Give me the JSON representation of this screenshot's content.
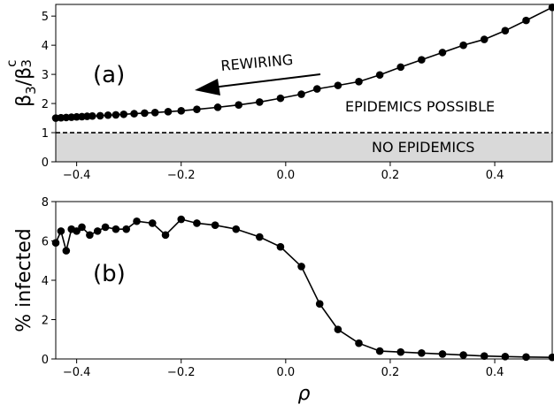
{
  "chart_data": [
    {
      "type": "line",
      "panel_label": "(a)",
      "ylabel_base": "β",
      "ylabel_sub": "3",
      "ylabel_sep": "/",
      "ylabel_base2": "β",
      "ylabel_sub2": "3",
      "ylabel_sup2": "c",
      "xlim": [
        -0.44,
        0.51
      ],
      "ylim": [
        0,
        5.4
      ],
      "xticks": [
        -0.4,
        -0.2,
        0.0,
        0.2,
        0.4
      ],
      "xtick_labels": [
        "−0.4",
        "−0.2",
        "0.0",
        "0.2",
        "0.4"
      ],
      "yticks": [
        0,
        1,
        2,
        3,
        4,
        5
      ],
      "ytick_labels": [
        "0",
        "1",
        "2",
        "3",
        "4",
        "5"
      ],
      "threshold_line_y": 1,
      "shaded_region": [
        0,
        1
      ],
      "annotations": {
        "rewiring": "REWIRING",
        "possible": "EPIDEMICS POSSIBLE",
        "none": "NO EPIDEMICS"
      },
      "series": [
        {
          "x": [
            -0.44,
            -0.43,
            -0.42,
            -0.41,
            -0.4,
            -0.39,
            -0.38,
            -0.37,
            -0.355,
            -0.34,
            -0.325,
            -0.31,
            -0.29,
            -0.27,
            -0.25,
            -0.225,
            -0.2,
            -0.17,
            -0.13,
            -0.09,
            -0.05,
            -0.01,
            0.03,
            0.06,
            0.1,
            0.14,
            0.18,
            0.22,
            0.26,
            0.3,
            0.34,
            0.38,
            0.42,
            0.46,
            0.51
          ],
          "y": [
            1.5,
            1.51,
            1.52,
            1.53,
            1.54,
            1.55,
            1.56,
            1.57,
            1.58,
            1.6,
            1.61,
            1.63,
            1.65,
            1.67,
            1.69,
            1.72,
            1.75,
            1.8,
            1.87,
            1.95,
            2.05,
            2.18,
            2.32,
            2.5,
            2.62,
            2.75,
            2.98,
            3.25,
            3.5,
            3.75,
            4.0,
            4.2,
            4.5,
            4.85,
            5.3
          ]
        }
      ]
    },
    {
      "type": "line",
      "panel_label": "(b)",
      "ylabel": "% infected",
      "xlabel": "ρ",
      "xlim": [
        -0.44,
        0.51
      ],
      "ylim": [
        0,
        8
      ],
      "xticks": [
        -0.4,
        -0.2,
        0.0,
        0.2,
        0.4
      ],
      "xtick_labels": [
        "−0.4",
        "−0.2",
        "0.0",
        "0.2",
        "0.4"
      ],
      "yticks": [
        0,
        2,
        4,
        6,
        8
      ],
      "ytick_labels": [
        "0",
        "2",
        "4",
        "6",
        "8"
      ],
      "series": [
        {
          "x": [
            -0.44,
            -0.43,
            -0.42,
            -0.41,
            -0.4,
            -0.39,
            -0.375,
            -0.36,
            -0.345,
            -0.325,
            -0.305,
            -0.285,
            -0.255,
            -0.23,
            -0.2,
            -0.17,
            -0.135,
            -0.095,
            -0.05,
            -0.01,
            0.03,
            0.065,
            0.1,
            0.14,
            0.18,
            0.22,
            0.26,
            0.3,
            0.34,
            0.38,
            0.42,
            0.46,
            0.51
          ],
          "y": [
            5.9,
            6.5,
            5.5,
            6.6,
            6.5,
            6.7,
            6.3,
            6.5,
            6.7,
            6.6,
            6.6,
            7.0,
            6.9,
            6.3,
            7.1,
            6.9,
            6.8,
            6.6,
            6.2,
            5.7,
            4.7,
            2.8,
            1.5,
            0.8,
            0.4,
            0.35,
            0.3,
            0.25,
            0.2,
            0.15,
            0.12,
            0.1,
            0.08
          ]
        }
      ]
    }
  ]
}
